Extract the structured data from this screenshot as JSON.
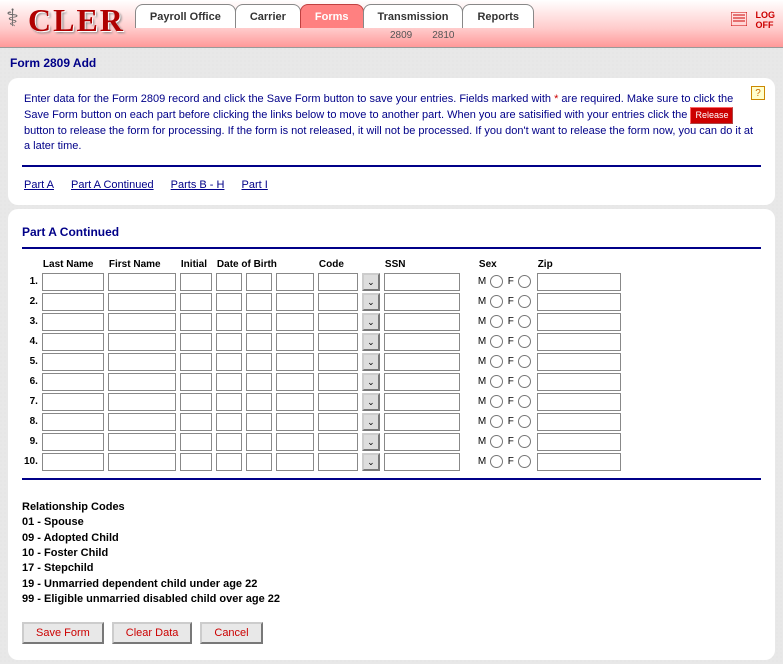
{
  "app": {
    "logo": "CLER"
  },
  "nav": {
    "tabs": [
      {
        "label": "Payroll Office",
        "active": false
      },
      {
        "label": "Carrier",
        "active": false
      },
      {
        "label": "Forms",
        "active": true
      },
      {
        "label": "Transmission",
        "active": false
      },
      {
        "label": "Reports",
        "active": false
      }
    ],
    "subtabs": [
      "2809",
      "2810"
    ],
    "logoff": "LOG\nOFF"
  },
  "page": {
    "title": "Form 2809 Add",
    "instructions_1": "Enter data for the Form 2809 record and click the Save Form button to save your entries.  Fields marked with ",
    "instructions_req": "*",
    "instructions_2": " are required.  Make sure to click the Save Form button on each part before clicking the links below to move to another part.  When you are satisified with your entries click the ",
    "release_label": "Release",
    "instructions_3": " button to release the form for processing.  If the form is not released, it will not be processed.  If you don't want to release the form now, you can do it at a later time.",
    "part_links": [
      "Part A",
      "Part A Continued",
      "Parts B - H",
      "Part I"
    ]
  },
  "section": {
    "title": "Part A Continued",
    "columns": {
      "last_name": "Last Name",
      "first_name": "First Name",
      "initial": "Initial",
      "dob": "Date of Birth",
      "code": "Code",
      "ssn": "SSN",
      "sex": "Sex",
      "zip": "Zip"
    },
    "sex_labels": {
      "m": "M",
      "f": "F"
    },
    "row_count": 10
  },
  "codes": {
    "heading": "Relationship Codes",
    "items": [
      "01 - Spouse",
      "09 - Adopted Child",
      "10 - Foster Child",
      "17 - Stepchild",
      "19 - Unmarried dependent child under age 22",
      "99 - Eligible unmarried disabled child over age 22"
    ]
  },
  "buttons": {
    "save": "Save Form",
    "clear": "Clear Data",
    "cancel": "Cancel"
  }
}
